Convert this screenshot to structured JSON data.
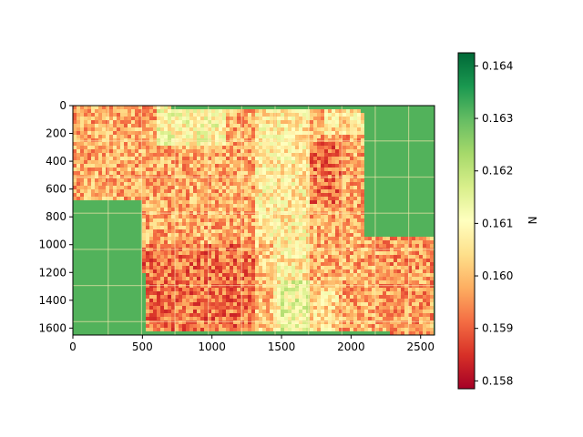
{
  "chart_data": {
    "type": "heatmap",
    "title": "",
    "xlabel": "",
    "ylabel": "",
    "xlim": [
      0,
      2600
    ],
    "ylim": [
      1650,
      0
    ],
    "x_ticks": [
      "0",
      "500",
      "1000",
      "1500",
      "2000",
      "2500"
    ],
    "x_tick_values": [
      0,
      500,
      1000,
      1500,
      2000,
      2500
    ],
    "y_ticks": [
      "0",
      "200",
      "400",
      "600",
      "800",
      "1000",
      "1200",
      "1400",
      "1600"
    ],
    "y_tick_values": [
      0,
      200,
      400,
      600,
      800,
      1000,
      1200,
      1400,
      1600
    ],
    "colormap": "RdYlGn",
    "colorbar": {
      "label": "N",
      "vmin": 0.15785,
      "vmax": 0.16425,
      "ticks": [
        "0.158",
        "0.159",
        "0.160",
        "0.161",
        "0.162",
        "0.163",
        "0.164"
      ],
      "tick_values": [
        0.158,
        0.159,
        0.16,
        0.161,
        0.162,
        0.163,
        0.164
      ]
    },
    "grid": false,
    "legend": "none",
    "mask_color": "#52b25b"
  }
}
